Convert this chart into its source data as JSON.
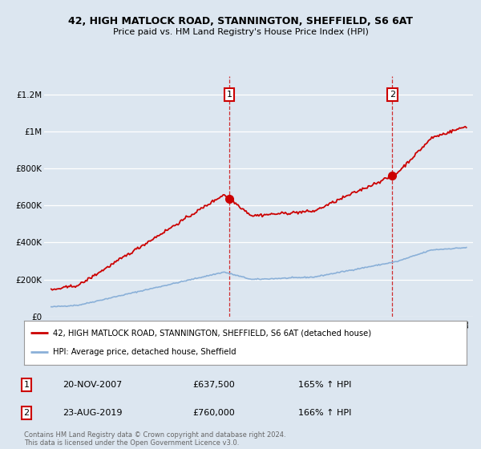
{
  "title1": "42, HIGH MATLOCK ROAD, STANNINGTON, SHEFFIELD, S6 6AT",
  "title2": "Price paid vs. HM Land Registry's House Price Index (HPI)",
  "ylabel_ticks": [
    "£0",
    "£200K",
    "£400K",
    "£600K",
    "£800K",
    "£1M",
    "£1.2M"
  ],
  "ylabel_values": [
    0,
    200000,
    400000,
    600000,
    800000,
    1000000,
    1200000
  ],
  "ylim": [
    0,
    1300000
  ],
  "xlim_start": 1994.5,
  "xlim_end": 2025.5,
  "bg_color": "#dce6f0",
  "red_line_color": "#cc0000",
  "blue_line_color": "#8ab0d8",
  "sale1_x": 2007.88,
  "sale1_y": 637500,
  "sale2_x": 2019.65,
  "sale2_y": 760000,
  "legend_label1": "42, HIGH MATLOCK ROAD, STANNINGTON, SHEFFIELD, S6 6AT (detached house)",
  "legend_label2": "HPI: Average price, detached house, Sheffield",
  "annotation1_date": "20-NOV-2007",
  "annotation1_price": "£637,500",
  "annotation1_pct": "165% ↑ HPI",
  "annotation2_date": "23-AUG-2019",
  "annotation2_price": "£760,000",
  "annotation2_pct": "166% ↑ HPI",
  "footer": "Contains HM Land Registry data © Crown copyright and database right 2024.\nThis data is licensed under the Open Government Licence v3.0."
}
